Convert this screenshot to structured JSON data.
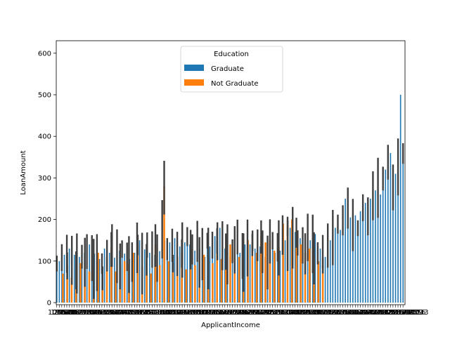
{
  "chart_data": {
    "type": "bar",
    "title": "",
    "xlabel": "ApplicantIncome",
    "ylabel": "LoanAmount",
    "ylim": [
      -5,
      630
    ],
    "yticks": [
      0,
      100,
      200,
      300,
      400,
      500,
      600
    ],
    "grid": false,
    "error_bars": true,
    "x_tick_labels": "many overlapping category labels",
    "legend": {
      "title": "Education",
      "placement": "top-center",
      "entries": [
        {
          "label": "Graduate",
          "color": "#1f77b4"
        },
        {
          "label": "Not Graduate",
          "color": "#ff7f0e"
        }
      ]
    },
    "series": [
      {
        "name": "Graduate",
        "color": "#1f77b4",
        "values": [
          95,
          100,
          110,
          115,
          120,
          130,
          105,
          115,
          98,
          110,
          112,
          120,
          125,
          140,
          110,
          118,
          100,
          105,
          95,
          130,
          115,
          120,
          140,
          108,
          115,
          125,
          130,
          118,
          112,
          105,
          100,
          120,
          135,
          150,
          98,
          128,
          140,
          120,
          130,
          115,
          110,
          124,
          180,
          150,
          130,
          145,
          140,
          155,
          120,
          135,
          130,
          145,
          160,
          140,
          130,
          125,
          150,
          130,
          120,
          110,
          150,
          135,
          140,
          160,
          150,
          180,
          140,
          130,
          120,
          110,
          125,
          135,
          160,
          120,
          115,
          140,
          135,
          140,
          150,
          130,
          140,
          135,
          125,
          110,
          100,
          130,
          150,
          120,
          135,
          125,
          165,
          150,
          140,
          180,
          160,
          170,
          145,
          155,
          140,
          130,
          160,
          150,
          145,
          165,
          120,
          130,
          125,
          110,
          140,
          150,
          160,
          180,
          190,
          175,
          200,
          250,
          230,
          205,
          190,
          210,
          180,
          220,
          230,
          240,
          210,
          250,
          260,
          270,
          280,
          260,
          300,
          320,
          340,
          360,
          280,
          310,
          330,
          500,
          360
        ]
      },
      {
        "name": "Not Graduate",
        "color": "#ff7f0e",
        "values": [
          70,
          90,
          60,
          80,
          95,
          100,
          75,
          85,
          120,
          60,
          110,
          130,
          75,
          90,
          100,
          95,
          120,
          140,
          85,
          105,
          70,
          140,
          90,
          280,
          100,
          95,
          110,
          120,
          80,
          130,
          90,
          100,
          115,
          110,
          95,
          150,
          105,
          125,
          140,
          130,
          110,
          100,
          150,
          140,
          120,
          160,
          145,
          150,
          125,
          135,
          190,
          185,
          200,
          170,
          140,
          120,
          130,
          110,
          100,
          90
        ]
      }
    ]
  }
}
